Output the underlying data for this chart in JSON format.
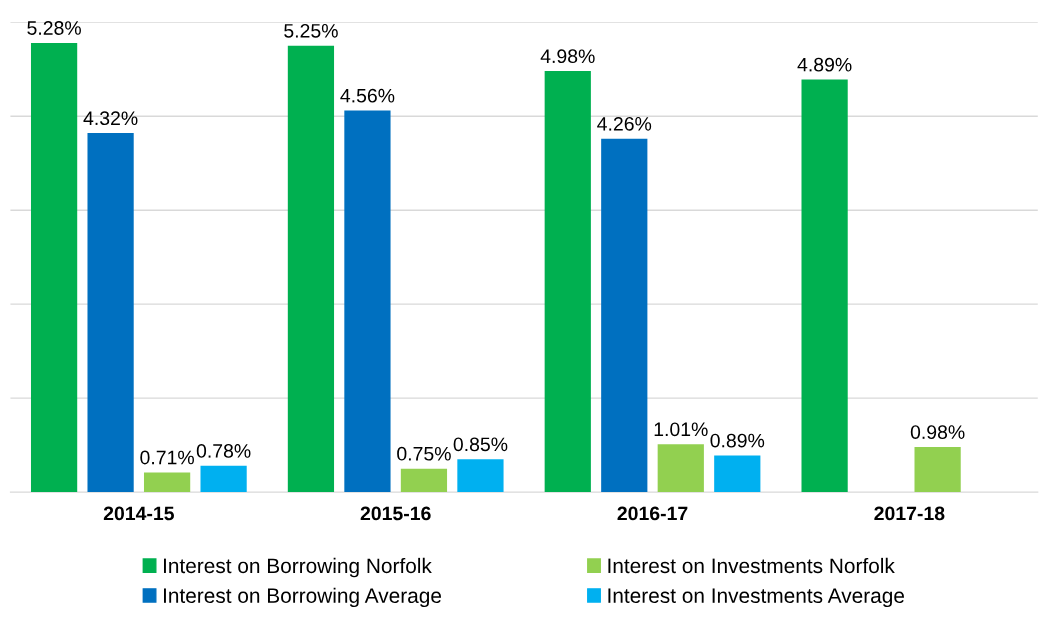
{
  "chart_data": {
    "type": "bar",
    "categories": [
      "2014-15",
      "2015-16",
      "2016-17",
      "2017-18"
    ],
    "series": [
      {
        "name": "Interest on Borrowing Norfolk",
        "color": "#00b050",
        "values": [
          5.28,
          5.25,
          4.98,
          4.89
        ],
        "value_labels": [
          "5.28%",
          "5.25%",
          "4.98%",
          "4.89%"
        ]
      },
      {
        "name": "Interest on Borrowing Average",
        "color": "#0070c0",
        "values": [
          4.32,
          4.56,
          4.26,
          null
        ],
        "value_labels": [
          "4.32%",
          "4.56%",
          "4.26%",
          null
        ]
      },
      {
        "name": "Interest on Investments Norfolk",
        "color": "#92d050",
        "values": [
          0.71,
          0.75,
          1.01,
          0.98
        ],
        "value_labels": [
          "0.71%",
          "0.75%",
          "1.01%",
          "0.98%"
        ]
      },
      {
        "name": "Interest on Investments Average",
        "color": "#00b0f0",
        "values": [
          0.78,
          0.85,
          0.89,
          null
        ],
        "value_labels": [
          "0.78%",
          "0.85%",
          "0.89%",
          null
        ]
      }
    ],
    "ylim": [
      0.5,
      5.5
    ],
    "yticks": [
      {
        "value": 1.5,
        "label": null
      },
      {
        "value": 2.5,
        "label": null
      },
      {
        "value": 3.5,
        "label": null
      },
      {
        "value": 4.5,
        "label": null
      },
      {
        "value": 5.5,
        "label": null
      }
    ],
    "tick_labels": "x",
    "grid": "y",
    "legend": "bottom"
  }
}
